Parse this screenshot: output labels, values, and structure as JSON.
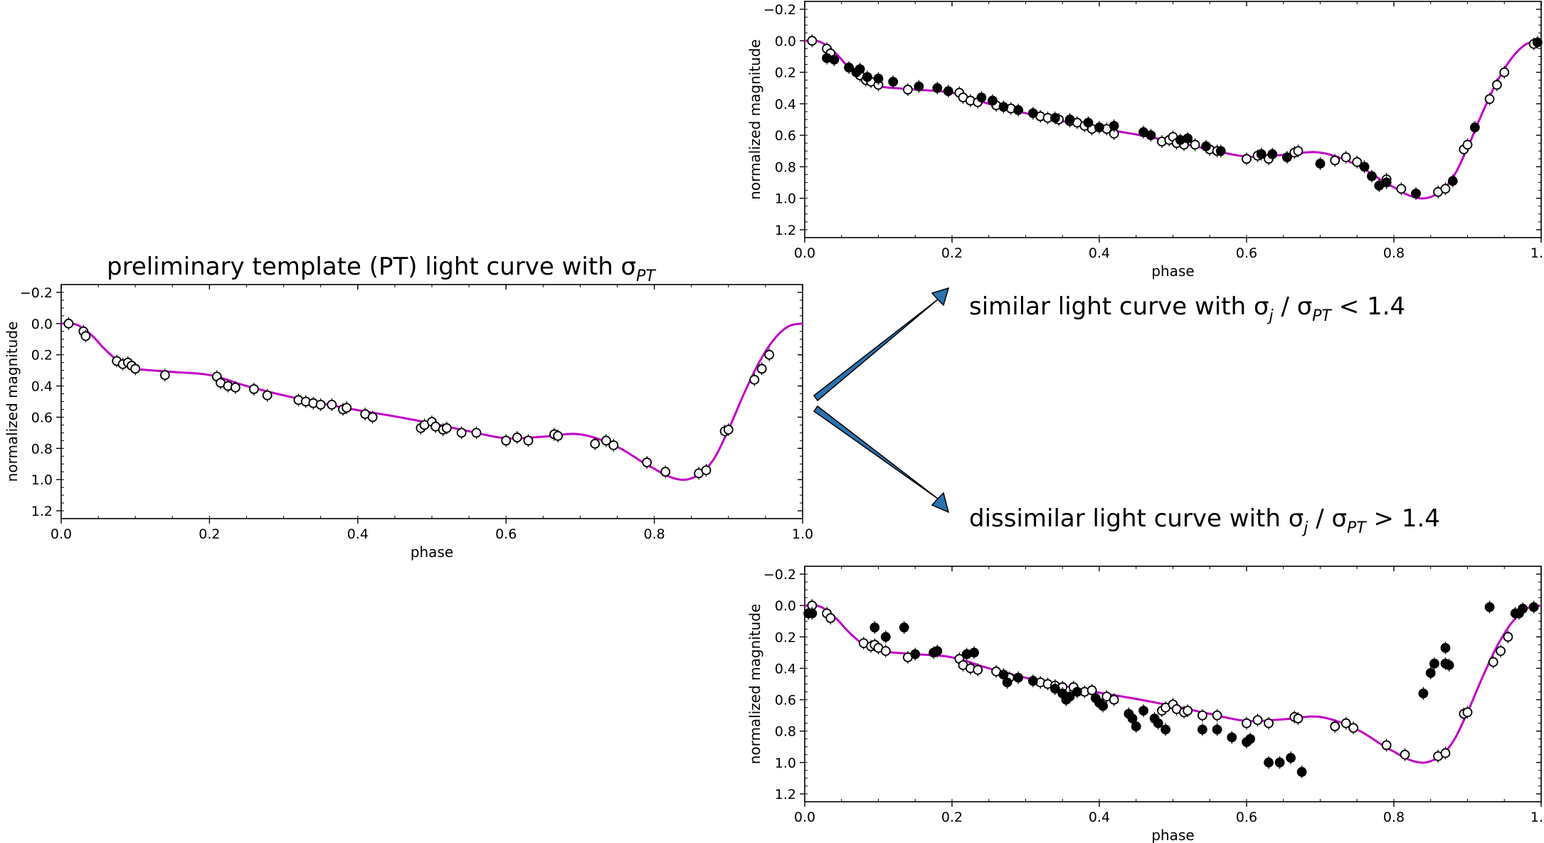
{
  "chart_data": [
    {
      "id": "main",
      "type": "scatter",
      "title": "preliminary template (PT) light curve with σ",
      "title_subscript": "PT",
      "xlabel": "phase",
      "ylabel": "normalized magnitude",
      "xlim": [
        0.0,
        1.0
      ],
      "ylim": [
        1.25,
        -0.25
      ],
      "xticks": [
        "0.0",
        "0.2",
        "0.4",
        "0.6",
        "0.8",
        "1.0"
      ],
      "yticks": [
        "−0.2",
        "0.0",
        "0.2",
        "0.4",
        "0.6",
        "0.8",
        "1.0",
        "1.2"
      ],
      "series": [
        {
          "name": "template",
          "style": "line",
          "color": "#c000c8"
        },
        {
          "name": "PT observations",
          "style": "open-circle",
          "points": [
            [
              0.01,
              0.0
            ],
            [
              0.03,
              0.05
            ],
            [
              0.033,
              0.08
            ],
            [
              0.075,
              0.24
            ],
            [
              0.083,
              0.26
            ],
            [
              0.09,
              0.25
            ],
            [
              0.095,
              0.27
            ],
            [
              0.1,
              0.29
            ],
            [
              0.14,
              0.33
            ],
            [
              0.21,
              0.34
            ],
            [
              0.215,
              0.38
            ],
            [
              0.225,
              0.4
            ],
            [
              0.235,
              0.41
            ],
            [
              0.26,
              0.42
            ],
            [
              0.278,
              0.46
            ],
            [
              0.32,
              0.49
            ],
            [
              0.33,
              0.5
            ],
            [
              0.34,
              0.51
            ],
            [
              0.35,
              0.52
            ],
            [
              0.365,
              0.52
            ],
            [
              0.38,
              0.55
            ],
            [
              0.385,
              0.54
            ],
            [
              0.41,
              0.58
            ],
            [
              0.42,
              0.6
            ],
            [
              0.485,
              0.67
            ],
            [
              0.49,
              0.65
            ],
            [
              0.5,
              0.63
            ],
            [
              0.505,
              0.66
            ],
            [
              0.515,
              0.68
            ],
            [
              0.52,
              0.67
            ],
            [
              0.54,
              0.7
            ],
            [
              0.56,
              0.7
            ],
            [
              0.6,
              0.75
            ],
            [
              0.615,
              0.73
            ],
            [
              0.63,
              0.75
            ],
            [
              0.665,
              0.71
            ],
            [
              0.67,
              0.72
            ],
            [
              0.72,
              0.77
            ],
            [
              0.735,
              0.75
            ],
            [
              0.745,
              0.78
            ],
            [
              0.79,
              0.89
            ],
            [
              0.815,
              0.95
            ],
            [
              0.86,
              0.96
            ],
            [
              0.87,
              0.94
            ],
            [
              0.895,
              0.69
            ],
            [
              0.9,
              0.68
            ],
            [
              0.935,
              0.36
            ],
            [
              0.945,
              0.29
            ],
            [
              0.955,
              0.2
            ]
          ]
        }
      ]
    },
    {
      "id": "similar",
      "type": "scatter",
      "xlabel": "phase",
      "ylabel": "normalized magnitude",
      "xlim": [
        0.0,
        1.0
      ],
      "ylim": [
        1.25,
        -0.25
      ],
      "xticks": [
        "0.0",
        "0.2",
        "0.4",
        "0.6",
        "0.8",
        "1.0"
      ],
      "yticks": [
        "−0.2",
        "0.0",
        "0.2",
        "0.4",
        "0.6",
        "0.8",
        "1.0",
        "1.2"
      ],
      "series": [
        {
          "name": "template",
          "style": "line",
          "color": "#c000c8"
        },
        {
          "name": "PT observations",
          "style": "open-circle",
          "points": [
            [
              0.01,
              0.0
            ],
            [
              0.03,
              0.05
            ],
            [
              0.035,
              0.08
            ],
            [
              0.075,
              0.22
            ],
            [
              0.083,
              0.25
            ],
            [
              0.09,
              0.26
            ],
            [
              0.1,
              0.28
            ],
            [
              0.14,
              0.31
            ],
            [
              0.21,
              0.33
            ],
            [
              0.215,
              0.36
            ],
            [
              0.225,
              0.38
            ],
            [
              0.235,
              0.39
            ],
            [
              0.26,
              0.41
            ],
            [
              0.28,
              0.43
            ],
            [
              0.32,
              0.48
            ],
            [
              0.33,
              0.49
            ],
            [
              0.345,
              0.5
            ],
            [
              0.36,
              0.51
            ],
            [
              0.37,
              0.52
            ],
            [
              0.38,
              0.54
            ],
            [
              0.39,
              0.56
            ],
            [
              0.41,
              0.56
            ],
            [
              0.42,
              0.59
            ],
            [
              0.485,
              0.64
            ],
            [
              0.495,
              0.63
            ],
            [
              0.5,
              0.61
            ],
            [
              0.505,
              0.65
            ],
            [
              0.515,
              0.66
            ],
            [
              0.53,
              0.66
            ],
            [
              0.55,
              0.69
            ],
            [
              0.56,
              0.7
            ],
            [
              0.6,
              0.75
            ],
            [
              0.615,
              0.73
            ],
            [
              0.63,
              0.75
            ],
            [
              0.665,
              0.71
            ],
            [
              0.67,
              0.7
            ],
            [
              0.72,
              0.76
            ],
            [
              0.735,
              0.74
            ],
            [
              0.75,
              0.77
            ],
            [
              0.79,
              0.88
            ],
            [
              0.81,
              0.94
            ],
            [
              0.86,
              0.96
            ],
            [
              0.87,
              0.94
            ],
            [
              0.895,
              0.69
            ],
            [
              0.9,
              0.66
            ],
            [
              0.93,
              0.37
            ],
            [
              0.94,
              0.28
            ],
            [
              0.95,
              0.2
            ],
            [
              0.99,
              0.02
            ]
          ]
        },
        {
          "name": "comparison observations",
          "style": "filled-circle",
          "points": [
            [
              0.03,
              0.11
            ],
            [
              0.04,
              0.12
            ],
            [
              0.06,
              0.17
            ],
            [
              0.075,
              0.18
            ],
            [
              0.07,
              0.2
            ],
            [
              0.085,
              0.23
            ],
            [
              0.1,
              0.24
            ],
            [
              0.12,
              0.26
            ],
            [
              0.155,
              0.29
            ],
            [
              0.18,
              0.3
            ],
            [
              0.195,
              0.32
            ],
            [
              0.24,
              0.36
            ],
            [
              0.255,
              0.38
            ],
            [
              0.27,
              0.42
            ],
            [
              0.29,
              0.44
            ],
            [
              0.31,
              0.46
            ],
            [
              0.34,
              0.49
            ],
            [
              0.36,
              0.5
            ],
            [
              0.385,
              0.52
            ],
            [
              0.4,
              0.55
            ],
            [
              0.42,
              0.54
            ],
            [
              0.46,
              0.58
            ],
            [
              0.47,
              0.6
            ],
            [
              0.51,
              0.63
            ],
            [
              0.52,
              0.62
            ],
            [
              0.545,
              0.67
            ],
            [
              0.565,
              0.7
            ],
            [
              0.62,
              0.72
            ],
            [
              0.635,
              0.72
            ],
            [
              0.655,
              0.74
            ],
            [
              0.7,
              0.78
            ],
            [
              0.76,
              0.8
            ],
            [
              0.77,
              0.86
            ],
            [
              0.78,
              0.92
            ],
            [
              0.79,
              0.9
            ],
            [
              0.83,
              0.97
            ],
            [
              0.88,
              0.89
            ],
            [
              0.91,
              0.55
            ],
            [
              0.995,
              0.01
            ]
          ]
        }
      ]
    },
    {
      "id": "dissimilar",
      "type": "scatter",
      "xlabel": "phase",
      "ylabel": "normalized magnitude",
      "xlim": [
        0.0,
        1.0
      ],
      "ylim": [
        1.25,
        -0.25
      ],
      "xticks": [
        "0.0",
        "0.2",
        "0.4",
        "0.6",
        "0.8",
        "1.0"
      ],
      "yticks": [
        "−0.2",
        "0.0",
        "0.2",
        "0.4",
        "0.6",
        "0.8",
        "1.0",
        "1.2"
      ],
      "series": [
        {
          "name": "template",
          "style": "line",
          "color": "#c000c8"
        },
        {
          "name": "PT observations",
          "style": "open-circle",
          "points": [
            [
              0.01,
              0.0
            ],
            [
              0.03,
              0.05
            ],
            [
              0.035,
              0.08
            ],
            [
              0.08,
              0.24
            ],
            [
              0.09,
              0.26
            ],
            [
              0.095,
              0.25
            ],
            [
              0.1,
              0.27
            ],
            [
              0.11,
              0.29
            ],
            [
              0.14,
              0.33
            ],
            [
              0.21,
              0.34
            ],
            [
              0.215,
              0.38
            ],
            [
              0.225,
              0.4
            ],
            [
              0.235,
              0.41
            ],
            [
              0.26,
              0.42
            ],
            [
              0.278,
              0.46
            ],
            [
              0.32,
              0.49
            ],
            [
              0.33,
              0.5
            ],
            [
              0.34,
              0.51
            ],
            [
              0.35,
              0.52
            ],
            [
              0.365,
              0.52
            ],
            [
              0.38,
              0.55
            ],
            [
              0.39,
              0.54
            ],
            [
              0.41,
              0.58
            ],
            [
              0.42,
              0.6
            ],
            [
              0.485,
              0.67
            ],
            [
              0.49,
              0.65
            ],
            [
              0.5,
              0.63
            ],
            [
              0.505,
              0.66
            ],
            [
              0.515,
              0.68
            ],
            [
              0.52,
              0.67
            ],
            [
              0.54,
              0.7
            ],
            [
              0.56,
              0.7
            ],
            [
              0.6,
              0.75
            ],
            [
              0.615,
              0.73
            ],
            [
              0.63,
              0.75
            ],
            [
              0.665,
              0.71
            ],
            [
              0.67,
              0.72
            ],
            [
              0.72,
              0.77
            ],
            [
              0.735,
              0.75
            ],
            [
              0.745,
              0.78
            ],
            [
              0.79,
              0.89
            ],
            [
              0.815,
              0.95
            ],
            [
              0.86,
              0.96
            ],
            [
              0.87,
              0.94
            ],
            [
              0.895,
              0.69
            ],
            [
              0.9,
              0.68
            ],
            [
              0.935,
              0.36
            ],
            [
              0.945,
              0.29
            ],
            [
              0.955,
              0.2
            ]
          ]
        },
        {
          "name": "comparison observations",
          "style": "filled-circle",
          "points": [
            [
              0.005,
              0.05
            ],
            [
              0.01,
              0.05
            ],
            [
              0.095,
              0.14
            ],
            [
              0.11,
              0.2
            ],
            [
              0.135,
              0.14
            ],
            [
              0.15,
              0.31
            ],
            [
              0.175,
              0.3
            ],
            [
              0.18,
              0.29
            ],
            [
              0.22,
              0.31
            ],
            [
              0.23,
              0.3
            ],
            [
              0.27,
              0.44
            ],
            [
              0.275,
              0.49
            ],
            [
              0.29,
              0.46
            ],
            [
              0.31,
              0.48
            ],
            [
              0.34,
              0.53
            ],
            [
              0.35,
              0.56
            ],
            [
              0.355,
              0.6
            ],
            [
              0.36,
              0.58
            ],
            [
              0.37,
              0.55
            ],
            [
              0.395,
              0.59
            ],
            [
              0.4,
              0.62
            ],
            [
              0.405,
              0.64
            ],
            [
              0.44,
              0.69
            ],
            [
              0.445,
              0.72
            ],
            [
              0.45,
              0.77
            ],
            [
              0.46,
              0.67
            ],
            [
              0.475,
              0.72
            ],
            [
              0.48,
              0.75
            ],
            [
              0.49,
              0.79
            ],
            [
              0.54,
              0.79
            ],
            [
              0.56,
              0.79
            ],
            [
              0.58,
              0.84
            ],
            [
              0.6,
              0.87
            ],
            [
              0.605,
              0.85
            ],
            [
              0.63,
              1.0
            ],
            [
              0.645,
              1.0
            ],
            [
              0.66,
              0.97
            ],
            [
              0.675,
              1.06
            ],
            [
              0.84,
              0.56
            ],
            [
              0.85,
              0.43
            ],
            [
              0.855,
              0.37
            ],
            [
              0.87,
              0.27
            ],
            [
              0.87,
              0.37
            ],
            [
              0.875,
              0.38
            ],
            [
              0.93,
              0.01
            ],
            [
              0.965,
              0.05
            ],
            [
              0.97,
              0.05
            ],
            [
              0.975,
              0.02
            ],
            [
              0.99,
              0.01
            ]
          ]
        }
      ]
    }
  ],
  "labels": {
    "similar_text": "similar light curve with σ",
    "similar_sub_j": "j",
    "similar_mid": " / σ",
    "similar_sub_pt": "PT",
    "similar_cmp": "  <  1.4",
    "dissimilar_text": "dissimilar light curve with σ",
    "dissimilar_sub_j": "j",
    "dissimilar_mid": " / σ",
    "dissimilar_sub_pt": "PT",
    "dissimilar_cmp": "  >  1.4"
  },
  "colors": {
    "template_line": "#c000c8",
    "arrow_fill": "#2a72b0",
    "arrow_stroke": "#000000"
  }
}
